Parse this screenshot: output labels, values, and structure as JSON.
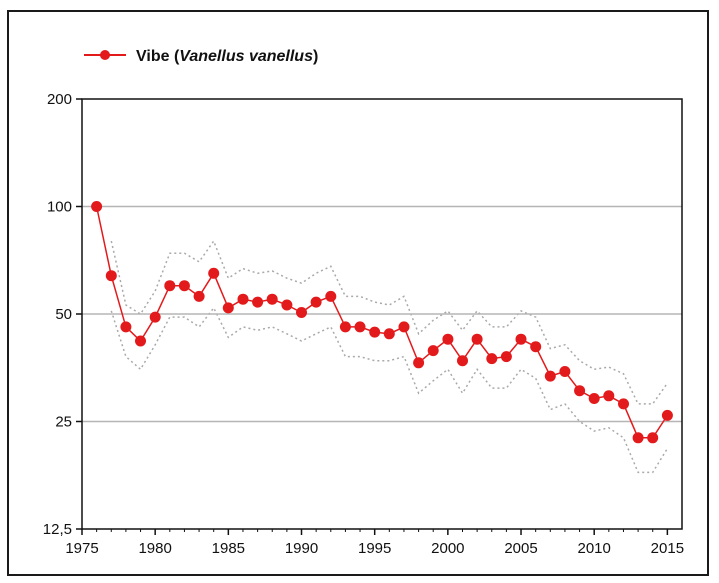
{
  "chart_data": {
    "type": "line",
    "legend": {
      "placement": "top-left",
      "label_prefix": "Vibe (",
      "label_latin": "Vanellus vanellus",
      "label_suffix": ")"
    },
    "y_scale": "log",
    "ylim": [
      12.5,
      200
    ],
    "yticks": [
      200,
      100,
      50,
      25,
      12.5
    ],
    "ytick_labels": [
      "200",
      "100",
      "50",
      "25",
      "12,5"
    ],
    "xlim": [
      1975,
      2016
    ],
    "xticks": [
      1975,
      1980,
      1985,
      1990,
      1995,
      2000,
      2005,
      2010,
      2015
    ],
    "xtick_labels": [
      "1975",
      "1980",
      "1985",
      "1990",
      "1995",
      "2000",
      "2005",
      "2010",
      "2015"
    ],
    "grid": "horizontal",
    "colors": {
      "series": "#e31a1c",
      "ci": "#a9a9a9",
      "grid": "#b5b5b5",
      "axis": "#111111"
    },
    "series": [
      {
        "name": "Vibe (Vanellus vanellus)",
        "x": [
          1976,
          1977,
          1978,
          1979,
          1980,
          1981,
          1982,
          1983,
          1984,
          1985,
          1986,
          1987,
          1988,
          1989,
          1990,
          1991,
          1992,
          1993,
          1994,
          1995,
          1996,
          1997,
          1998,
          1999,
          2000,
          2001,
          2002,
          2003,
          2004,
          2005,
          2006,
          2007,
          2008,
          2009,
          2010,
          2011,
          2012,
          2013,
          2014,
          2015
        ],
        "y": [
          100,
          64,
          46,
          42,
          49,
          60,
          60,
          56,
          65,
          52,
          55,
          54,
          55,
          53,
          50.5,
          54,
          56,
          46,
          46,
          44.5,
          44,
          46,
          36.5,
          39.5,
          42.5,
          37,
          42.5,
          37.5,
          38,
          42.5,
          40.5,
          33.5,
          34.5,
          30.5,
          29,
          29.5,
          28,
          22.5,
          22.5,
          26
        ]
      }
    ],
    "ci_upper": [
      null,
      80,
      53,
      50,
      58,
      74,
      74,
      70,
      80,
      63,
      67,
      65,
      66,
      63,
      61,
      65,
      68,
      56,
      56,
      54,
      53,
      56,
      44,
      48,
      51,
      45,
      51,
      46,
      46,
      51,
      49,
      40,
      41,
      37,
      35,
      35.5,
      34,
      28,
      28,
      32
    ],
    "ci_lower": [
      null,
      51,
      38,
      35,
      41,
      49,
      49,
      46,
      52,
      43,
      46,
      45,
      46,
      44,
      42,
      44,
      46,
      38,
      38,
      37,
      37,
      38,
      30,
      32.5,
      35,
      30,
      35,
      31,
      31,
      35,
      33,
      27,
      28,
      25,
      23.5,
      24,
      22.5,
      18,
      18,
      21
    ]
  }
}
